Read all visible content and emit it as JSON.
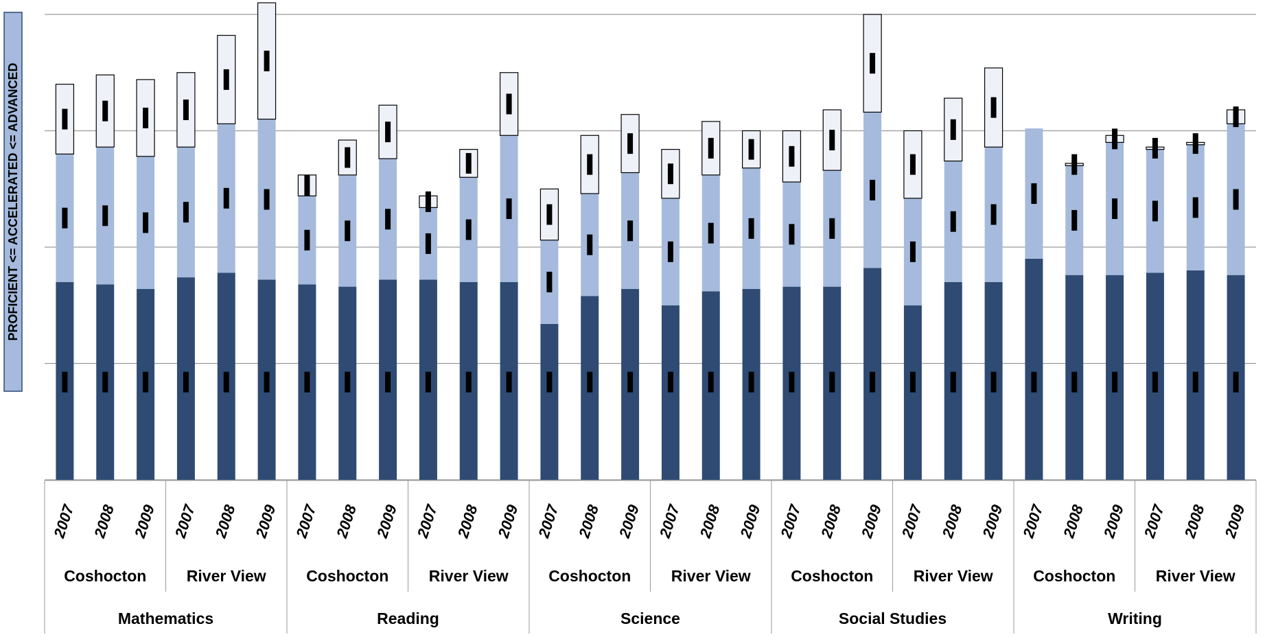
{
  "chart_data": {
    "type": "stacked-bar",
    "y_label": "PROFICIENT <= ACCELERATED <= ADVANCED",
    "categories": [
      "2007",
      "2008",
      "2009",
      "2007",
      "2008",
      "2009",
      "2007",
      "2008",
      "2009",
      "2007",
      "2008",
      "2009",
      "2007",
      "2008",
      "2009",
      "2007",
      "2008",
      "2009",
      "2007",
      "2008",
      "2009",
      "2007",
      "2008",
      "2009",
      "2007",
      "2008",
      "2009",
      "2007",
      "2008",
      "2009"
    ],
    "school_groups": [
      "Coshocton",
      "River View",
      "Coshocton",
      "River View",
      "Coshocton",
      "River View",
      "Coshocton",
      "River View",
      "Coshocton",
      "River View"
    ],
    "subject_groups": [
      "Mathematics",
      "Reading",
      "Science",
      "Social Studies",
      "Writing"
    ],
    "ylim": [
      0,
      200
    ],
    "yticks": [
      0,
      50,
      100,
      150,
      200
    ],
    "grid": true,
    "series": [
      {
        "color": "#2f4b74",
        "text_color": "#ffffff",
        "values": [
          85,
          84,
          82,
          87,
          89,
          86,
          84,
          83,
          86,
          86,
          85,
          85,
          67,
          79,
          82,
          75,
          81,
          82,
          83,
          83,
          91,
          75,
          85,
          85,
          95,
          88,
          88,
          89,
          90,
          88
        ],
        "value_labels": [
          "85%",
          "84%",
          "82%",
          "87%",
          "89%",
          "86%",
          "84%",
          "83%",
          "86%",
          "86%",
          "85%",
          "85%",
          "67%",
          "79%",
          "82%",
          "75%",
          "81%",
          "82%",
          "83%",
          "83%",
          "91%",
          "75%",
          "85%",
          "85%",
          "95%",
          "88%",
          "88%",
          "89%",
          "90%",
          "88%"
        ]
      },
      {
        "color": "#a5badc",
        "text_color": "#000000",
        "values": [
          55,
          59,
          57,
          56,
          64,
          69,
          38,
          48,
          52,
          31,
          45,
          63,
          36,
          44,
          50,
          46,
          50,
          52,
          45,
          50,
          67,
          46,
          52,
          58,
          56,
          47,
          57,
          53,
          54,
          65
        ],
        "value_labels": [
          "55%",
          "59%",
          "57%",
          "56%",
          "64%",
          "69%",
          "38%",
          "48%",
          "52%",
          "31%",
          "45%",
          "63%",
          "36%",
          "44%",
          "50%",
          "46%",
          "50%",
          "52%",
          "45%",
          "50%",
          "67%",
          "46%",
          "52%",
          "58%",
          "56%",
          "47%",
          "57%",
          "53%",
          "54%",
          "65%"
        ]
      },
      {
        "color": "#eef2f8",
        "text_color": "#000000",
        "values": [
          30,
          31,
          33,
          32,
          38,
          50,
          9,
          15,
          23,
          5,
          12,
          27,
          22,
          25,
          25,
          21,
          23,
          16,
          22,
          26,
          42,
          29,
          27,
          34,
          0,
          1,
          3,
          1,
          1,
          6
        ],
        "value_labels": [
          "30%",
          "31%",
          "33%",
          "32%",
          "38%",
          "50%",
          "9%",
          "15%",
          "23%",
          "5%",
          "12%",
          "27%",
          "22%",
          "25%",
          "25%",
          "21%",
          "23%",
          "16%",
          "22%",
          "26%",
          "42%",
          "29%",
          "27%",
          "34%",
          null,
          "1%",
          "3%",
          "1%",
          "1%",
          "6%"
        ]
      }
    ]
  }
}
